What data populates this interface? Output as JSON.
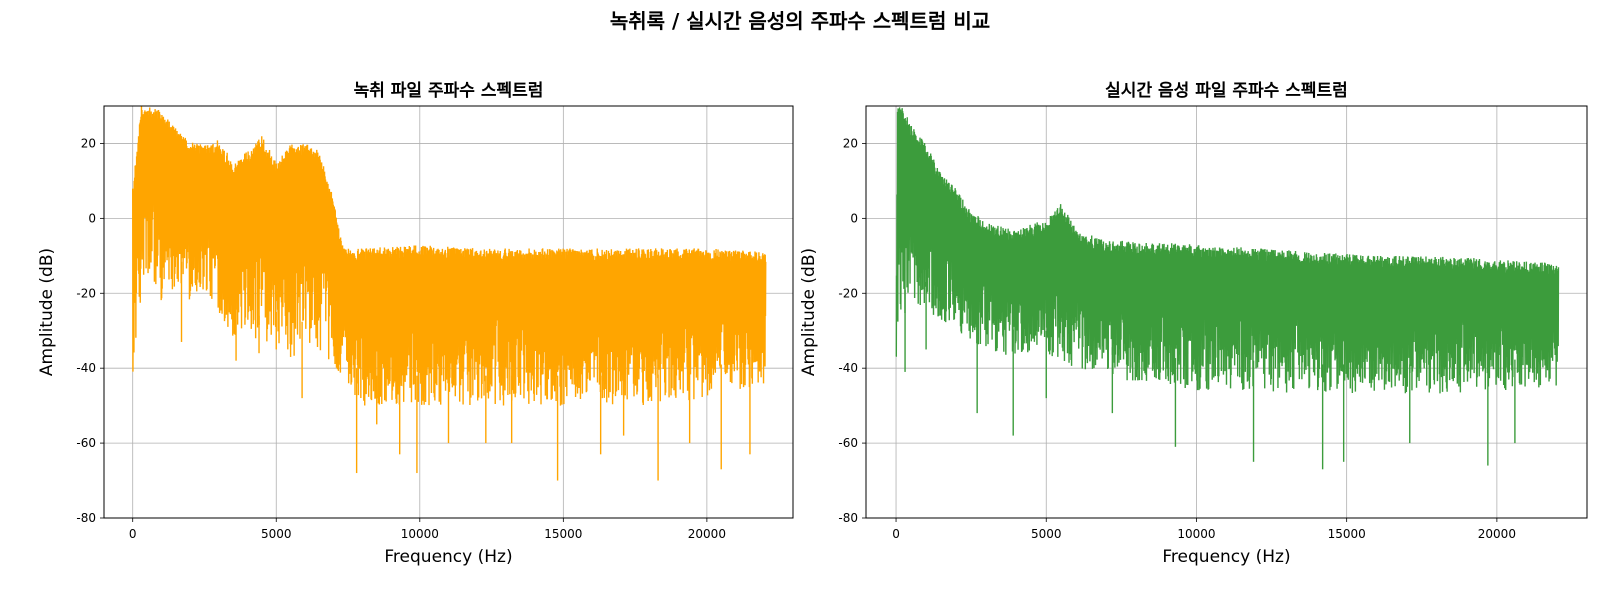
{
  "figure": {
    "suptitle": "녹취록 / 실시간 음성의 주파수 스펙트럼 비교"
  },
  "chart_data": [
    {
      "type": "line",
      "title": "녹취 파일 주파수 스펙트럼",
      "xlabel": "Frequency (Hz)",
      "ylabel": "Amplitude (dB)",
      "xlim": [
        -1000,
        23000
      ],
      "ylim": [
        -80,
        30
      ],
      "xticks": [
        0,
        5000,
        10000,
        15000,
        20000
      ],
      "yticks": [
        -80,
        -60,
        -40,
        -20,
        0,
        20
      ],
      "grid": true,
      "color": "#FFA500",
      "series": [
        {
          "x": [
            0,
            300,
            600,
            1000,
            1500,
            2000,
            2500,
            3000,
            3500,
            4000,
            4500,
            5000,
            5500,
            6000,
            6500,
            7000,
            7300,
            7500,
            8000,
            10000,
            12000,
            14000,
            16000,
            18000,
            20000,
            22050
          ],
          "upper": [
            8,
            30,
            30,
            29,
            24,
            21,
            20,
            21,
            15,
            18,
            22,
            15,
            20,
            20,
            18,
            5,
            -7,
            -8,
            -8,
            -7,
            -8,
            -8,
            -8,
            -8,
            -8,
            -9
          ],
          "lower": [
            -42,
            -20,
            -18,
            -22,
            -18,
            -22,
            -20,
            -25,
            -32,
            -30,
            -35,
            -33,
            -38,
            -35,
            -35,
            -40,
            -42,
            -45,
            -50,
            -50,
            -50,
            -50,
            -50,
            -50,
            -48,
            -44
          ],
          "dips": [
            [
              1700,
              -33
            ],
            [
              3600,
              -38
            ],
            [
              4400,
              -36
            ],
            [
              5000,
              -35
            ],
            [
              5500,
              -37
            ],
            [
              5900,
              -48
            ],
            [
              7800,
              -68
            ],
            [
              8500,
              -55
            ],
            [
              9300,
              -63
            ],
            [
              9900,
              -68
            ],
            [
              11000,
              -60
            ],
            [
              12300,
              -60
            ],
            [
              13200,
              -60
            ],
            [
              14800,
              -70
            ],
            [
              16300,
              -63
            ],
            [
              17100,
              -58
            ],
            [
              18300,
              -70
            ],
            [
              19400,
              -60
            ],
            [
              20500,
              -67
            ],
            [
              21500,
              -63
            ]
          ]
        }
      ]
    },
    {
      "type": "line",
      "title": "실시간 음성 파일 주파수 스펙트럼",
      "xlabel": "Frequency (Hz)",
      "ylabel": "Amplitude (dB)",
      "xlim": [
        -1000,
        23000
      ],
      "ylim": [
        -80,
        30
      ],
      "xticks": [
        0,
        5000,
        10000,
        15000,
        20000
      ],
      "yticks": [
        -80,
        -60,
        -40,
        -20,
        0,
        20
      ],
      "grid": true,
      "color": "#3C9C3C",
      "series": [
        {
          "x": [
            0,
            50,
            200,
            500,
            1000,
            1500,
            2000,
            2500,
            3000,
            4000,
            5000,
            5500,
            6000,
            7000,
            8000,
            10000,
            12000,
            14000,
            16000,
            18000,
            20000,
            22050
          ],
          "upper": [
            -35,
            30,
            30,
            25,
            20,
            12,
            8,
            2,
            -1,
            -3,
            0,
            4,
            -3,
            -6,
            -6,
            -7,
            -8,
            -9,
            -10,
            -10,
            -11,
            -12
          ],
          "lower": [
            -38,
            -38,
            -28,
            -25,
            -25,
            -27,
            -30,
            -33,
            -35,
            -38,
            -38,
            -40,
            -40,
            -42,
            -44,
            -46,
            -46,
            -47,
            -47,
            -47,
            -46,
            -45
          ],
          "dips": [
            [
              300,
              -41
            ],
            [
              1000,
              -35
            ],
            [
              2700,
              -52
            ],
            [
              3900,
              -58
            ],
            [
              5000,
              -48
            ],
            [
              7200,
              -52
            ],
            [
              9300,
              -61
            ],
            [
              11900,
              -65
            ],
            [
              14200,
              -67
            ],
            [
              14900,
              -65
            ],
            [
              17100,
              -60
            ],
            [
              19700,
              -66
            ],
            [
              20600,
              -60
            ]
          ]
        }
      ]
    }
  ]
}
